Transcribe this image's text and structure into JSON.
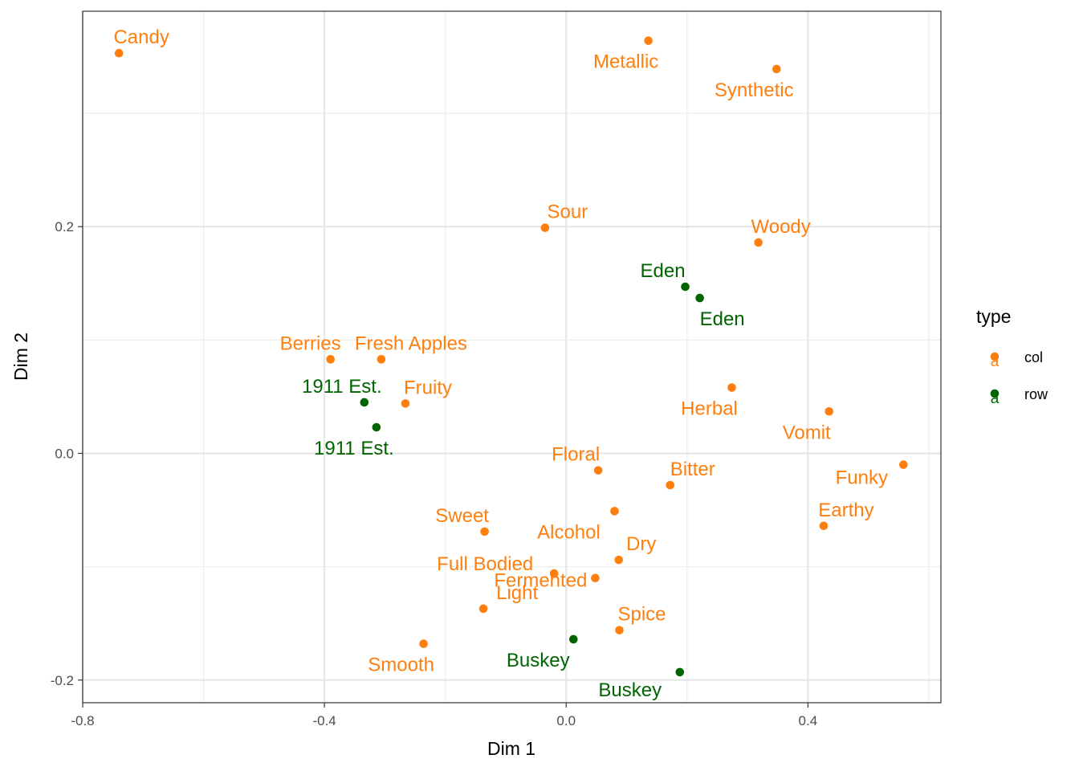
{
  "chart_data": {
    "type": "scatter",
    "xlabel": "Dim 1",
    "ylabel": "Dim 2",
    "xlim": [
      -0.8,
      0.62
    ],
    "ylim": [
      -0.22,
      0.39
    ],
    "x_ticks": [
      -0.8,
      -0.4,
      0.0,
      0.4
    ],
    "x_tick_labels": [
      "-0.8",
      "-0.4",
      "0.0",
      "0.4"
    ],
    "y_ticks": [
      -0.2,
      0.0,
      0.2
    ],
    "y_tick_labels": [
      "-0.2",
      "0.0",
      "0.2"
    ],
    "grid": true,
    "legend": {
      "title": "type",
      "position": "right",
      "items": [
        {
          "label": "col",
          "color": "#FF7F0E"
        },
        {
          "label": "row",
          "color": "#006400"
        }
      ]
    },
    "colors": {
      "col": "#FF7F0E",
      "row": "#006400"
    },
    "points": [
      {
        "label": "Candy",
        "type": "col",
        "x": -0.74,
        "y": 0.353
      },
      {
        "label": "Metallic",
        "type": "col",
        "x": 0.136,
        "y": 0.364
      },
      {
        "label": "Synthetic",
        "type": "col",
        "x": 0.348,
        "y": 0.339
      },
      {
        "label": "Sour",
        "type": "col",
        "x": -0.035,
        "y": 0.199
      },
      {
        "label": "Woody",
        "type": "col",
        "x": 0.318,
        "y": 0.186
      },
      {
        "label": "Berries",
        "type": "col",
        "x": -0.39,
        "y": 0.083
      },
      {
        "label": "Fresh Apples",
        "type": "col",
        "x": -0.306,
        "y": 0.083
      },
      {
        "label": "Fruity",
        "type": "col",
        "x": -0.266,
        "y": 0.044
      },
      {
        "label": "Herbal",
        "type": "col",
        "x": 0.274,
        "y": 0.058
      },
      {
        "label": "Vomit",
        "type": "col",
        "x": 0.435,
        "y": 0.037
      },
      {
        "label": "Floral",
        "type": "col",
        "x": 0.053,
        "y": -0.015
      },
      {
        "label": "Bitter",
        "type": "col",
        "x": 0.172,
        "y": -0.028
      },
      {
        "label": "Funky",
        "type": "col",
        "x": 0.558,
        "y": -0.01
      },
      {
        "label": "Earthy",
        "type": "col",
        "x": 0.426,
        "y": -0.064
      },
      {
        "label": "Sweet",
        "type": "col",
        "x": -0.135,
        "y": -0.069
      },
      {
        "label": "Alcohol",
        "type": "col",
        "x": 0.08,
        "y": -0.051
      },
      {
        "label": "Dry",
        "type": "col",
        "x": 0.087,
        "y": -0.094
      },
      {
        "label": "Full Bodied",
        "type": "col",
        "x": -0.02,
        "y": -0.106
      },
      {
        "label": "Fermented",
        "type": "col",
        "x": 0.048,
        "y": -0.11
      },
      {
        "label": "Light",
        "type": "col",
        "x": -0.137,
        "y": -0.137
      },
      {
        "label": "Spice",
        "type": "col",
        "x": 0.088,
        "y": -0.156
      },
      {
        "label": "Smooth",
        "type": "col",
        "x": -0.236,
        "y": -0.168
      },
      {
        "label": "Eden",
        "type": "row",
        "x": 0.197,
        "y": 0.147
      },
      {
        "label": "Eden",
        "type": "row",
        "x": 0.221,
        "y": 0.137
      },
      {
        "label": "1911 Est.",
        "type": "row",
        "x": -0.334,
        "y": 0.045
      },
      {
        "label": "1911 Est.",
        "type": "row",
        "x": -0.314,
        "y": 0.023
      },
      {
        "label": "Buskey",
        "type": "row",
        "x": 0.012,
        "y": -0.164
      },
      {
        "label": "Buskey",
        "type": "row",
        "x": 0.188,
        "y": -0.193
      }
    ]
  }
}
